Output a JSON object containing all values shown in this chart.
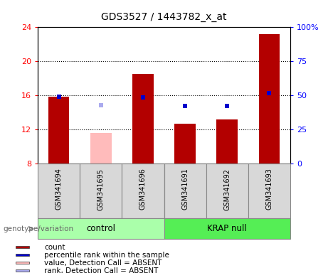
{
  "title": "GDS3527 / 1443782_x_at",
  "samples": [
    "GSM341694",
    "GSM341695",
    "GSM341696",
    "GSM341691",
    "GSM341692",
    "GSM341693"
  ],
  "bar_values": [
    15.9,
    11.6,
    18.5,
    12.7,
    13.2,
    23.2
  ],
  "bar_absent": [
    false,
    true,
    false,
    false,
    false,
    false
  ],
  "bar_color_present": "#b30000",
  "bar_color_absent": "#ffbbbb",
  "percentile_values": [
    15.85,
    14.85,
    15.75,
    14.75,
    14.75,
    16.3
  ],
  "percentile_absent": [
    false,
    true,
    false,
    false,
    false,
    false
  ],
  "percentile_color_present": "#0000cc",
  "percentile_color_absent": "#aaaaee",
  "ylim_left": [
    8,
    24
  ],
  "ylim_right": [
    0,
    100
  ],
  "yticks_left": [
    8,
    12,
    16,
    20,
    24
  ],
  "yticks_right": [
    0,
    25,
    50,
    75,
    100
  ],
  "ytick_labels_right": [
    "0",
    "25",
    "50",
    "75",
    "100%"
  ],
  "grid_lines": [
    12,
    16,
    20
  ],
  "groups": [
    {
      "label": "control",
      "indices": [
        0,
        1,
        2
      ],
      "color": "#aaffaa"
    },
    {
      "label": "KRAP null",
      "indices": [
        3,
        4,
        5
      ],
      "color": "#55ee55"
    }
  ],
  "genotype_label": "genotype/variation",
  "legend_items": [
    {
      "label": "count",
      "color": "#b30000"
    },
    {
      "label": "percentile rank within the sample",
      "color": "#0000cc"
    },
    {
      "label": "value, Detection Call = ABSENT",
      "color": "#ffbbbb"
    },
    {
      "label": "rank, Detection Call = ABSENT",
      "color": "#aaaaee"
    }
  ]
}
